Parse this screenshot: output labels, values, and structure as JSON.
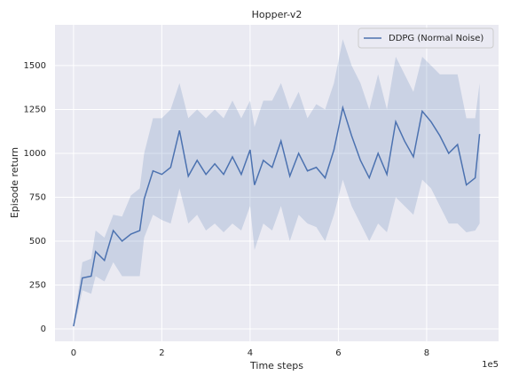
{
  "chart_data": {
    "type": "line",
    "title": "Hopper-v2",
    "xlabel": "Time steps",
    "ylabel": "Episode return",
    "x_offset_label": "1e5",
    "x": [
      0.0,
      0.1,
      0.2,
      0.4,
      0.5,
      0.7,
      0.9,
      1.1,
      1.3,
      1.5,
      1.6,
      1.8,
      2.0,
      2.2,
      2.4,
      2.6,
      2.8,
      3.0,
      3.2,
      3.4,
      3.6,
      3.8,
      4.0,
      4.1,
      4.3,
      4.5,
      4.7,
      4.9,
      5.1,
      5.3,
      5.5,
      5.7,
      5.9,
      6.1,
      6.3,
      6.5,
      6.7,
      6.9,
      7.1,
      7.3,
      7.5,
      7.7,
      7.9,
      8.1,
      8.3,
      8.5,
      8.7,
      8.9,
      9.1,
      9.2
    ],
    "series": [
      {
        "name": "DDPG (Normal Noise)",
        "color": "#4c72b0",
        "values": [
          15,
          150,
          290,
          300,
          440,
          390,
          560,
          500,
          540,
          560,
          740,
          900,
          880,
          920,
          1130,
          870,
          960,
          880,
          940,
          880,
          980,
          880,
          1020,
          820,
          960,
          920,
          1070,
          870,
          1000,
          900,
          920,
          860,
          1020,
          1260,
          1100,
          960,
          860,
          1000,
          880,
          1180,
          1070,
          980,
          1240,
          1180,
          1100,
          1000,
          1050,
          820,
          860,
          1110
        ],
        "lower": [
          10,
          100,
          220,
          200,
          300,
          270,
          380,
          300,
          300,
          300,
          520,
          650,
          620,
          600,
          800,
          600,
          650,
          560,
          600,
          550,
          600,
          560,
          700,
          450,
          600,
          560,
          700,
          500,
          650,
          600,
          580,
          500,
          650,
          850,
          700,
          600,
          500,
          600,
          550,
          750,
          700,
          650,
          850,
          800,
          700,
          600,
          600,
          550,
          560,
          600
        ],
        "upper": [
          20,
          200,
          380,
          400,
          560,
          520,
          650,
          640,
          760,
          800,
          1000,
          1200,
          1200,
          1250,
          1400,
          1200,
          1250,
          1200,
          1250,
          1200,
          1300,
          1200,
          1300,
          1150,
          1300,
          1300,
          1400,
          1250,
          1350,
          1200,
          1280,
          1250,
          1400,
          1650,
          1500,
          1400,
          1250,
          1450,
          1250,
          1550,
          1450,
          1350,
          1550,
          1500,
          1450,
          1450,
          1450,
          1200,
          1200,
          1400
        ]
      }
    ],
    "xlim": [
      -0.42,
      9.63
    ],
    "ylim": [
      -71,
      1732
    ],
    "xticks": [
      0,
      2,
      4,
      6,
      8
    ],
    "yticks": [
      0,
      250,
      500,
      750,
      1000,
      1250,
      1500
    ],
    "grid": true,
    "legend": "upper right"
  }
}
